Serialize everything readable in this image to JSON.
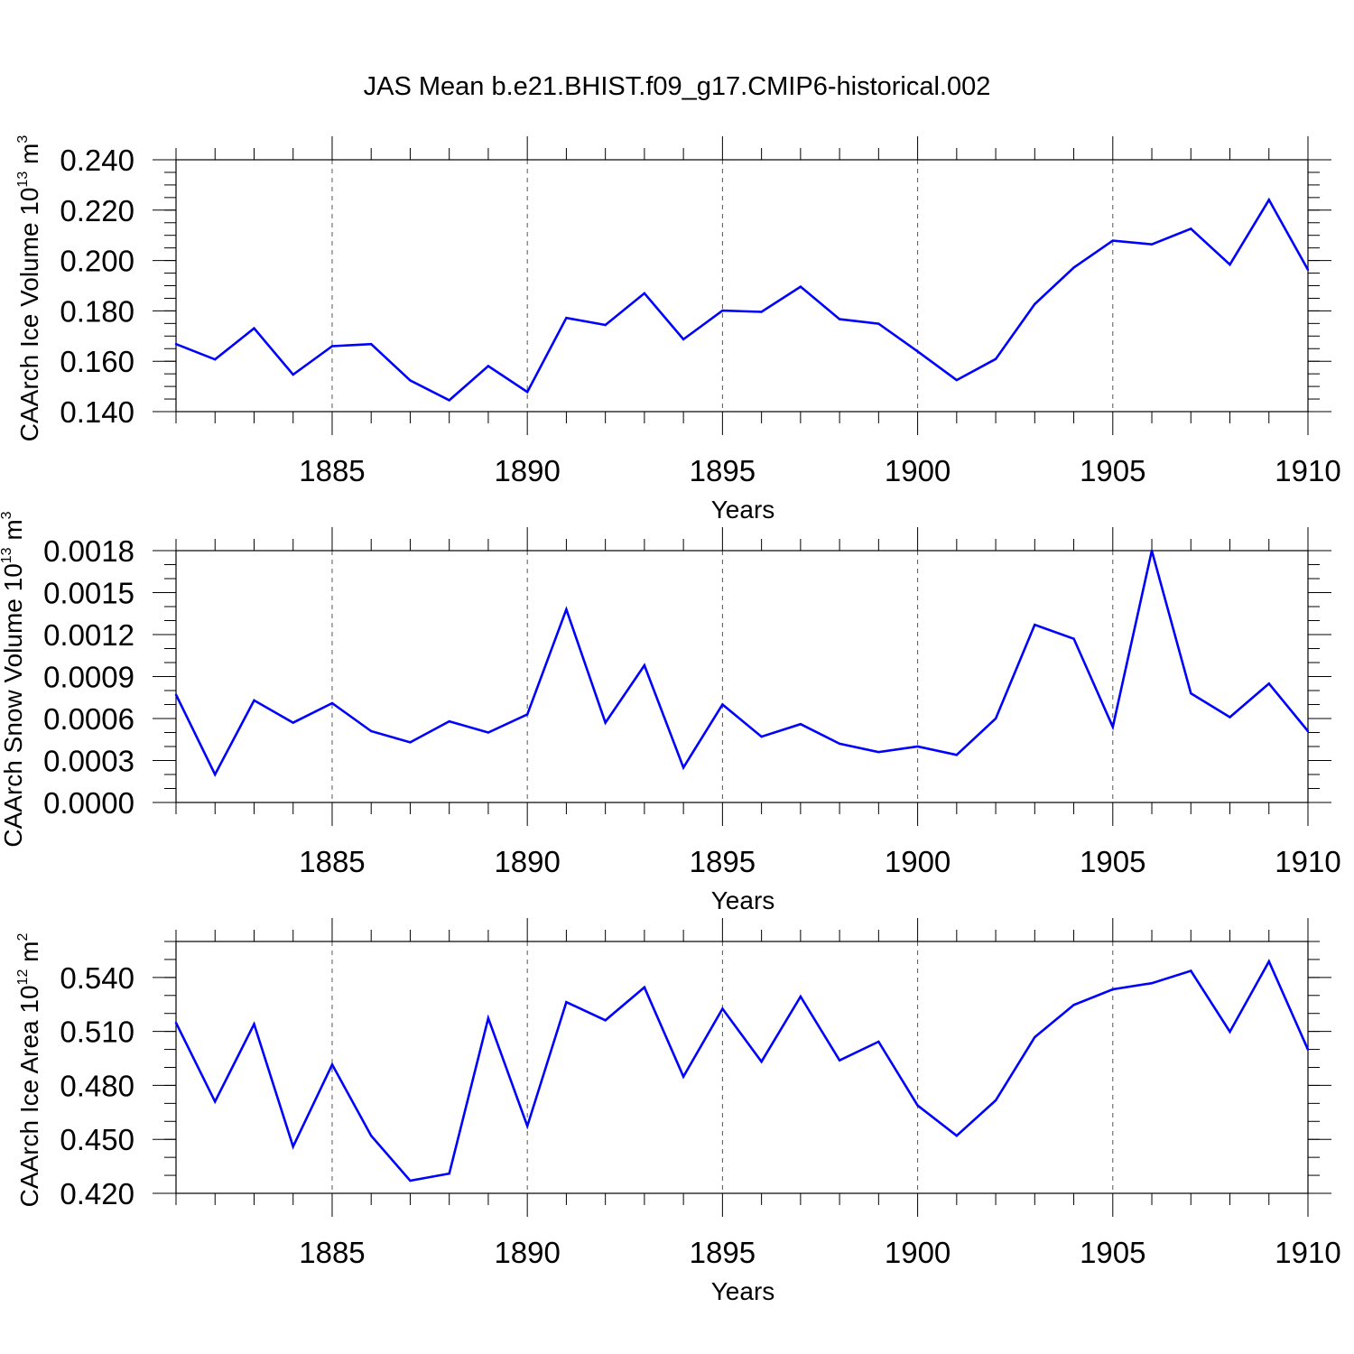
{
  "title": "JAS Mean b.e21.BHIST.f09_g17.CMIP6-historical.002",
  "line_color": "#0000ff",
  "chart_data": [
    {
      "type": "line",
      "title": "JAS Mean b.e21.BHIST.f09_g17.CMIP6-historical.002",
      "xlabel": "Years",
      "ylabel": "CAArch Ice Volume 10",
      "ylabel_exp": "13",
      "ylabel_unit": " m",
      "ylabel_unit_exp": "3",
      "xlim": [
        1881,
        1910
      ],
      "ylim": [
        0.14,
        0.24
      ],
      "yticks": [
        "0.140",
        "0.160",
        "0.180",
        "0.200",
        "0.220",
        "0.240"
      ],
      "ytick_values": [
        0.14,
        0.16,
        0.18,
        0.2,
        0.22,
        0.24
      ],
      "yminor_step": 0.005,
      "xticks": [
        "1885",
        "1890",
        "1895",
        "1900",
        "1905",
        "1910"
      ],
      "xtick_values": [
        1885,
        1890,
        1895,
        1900,
        1905,
        1910
      ],
      "grid": "x-dashed",
      "x": [
        1881,
        1882,
        1883,
        1884,
        1885,
        1886,
        1887,
        1888,
        1889,
        1890,
        1891,
        1892,
        1893,
        1894,
        1895,
        1896,
        1897,
        1898,
        1899,
        1900,
        1901,
        1902,
        1903,
        1904,
        1905,
        1906,
        1907,
        1908,
        1909,
        1910
      ],
      "series": [
        {
          "name": "CAArch Ice Volume",
          "values": [
            0.1668,
            0.1607,
            0.1731,
            0.1547,
            0.166,
            0.1668,
            0.1524,
            0.1445,
            0.1581,
            0.1478,
            0.1772,
            0.1744,
            0.187,
            0.1687,
            0.1801,
            0.1796,
            0.1896,
            0.1767,
            0.1749,
            0.1639,
            0.1525,
            0.1609,
            0.1827,
            0.1972,
            0.2079,
            0.2064,
            0.2126,
            0.1984,
            0.2241,
            0.1963
          ]
        }
      ]
    },
    {
      "type": "line",
      "xlabel": "Years",
      "ylabel": "CAArch Snow Volume 10",
      "ylabel_exp": "13",
      "ylabel_unit": " m",
      "ylabel_unit_exp": "3",
      "xlim": [
        1881,
        1910
      ],
      "ylim": [
        0.0,
        0.0018
      ],
      "yticks": [
        "0.0000",
        "0.0003",
        "0.0006",
        "0.0009",
        "0.0012",
        "0.0015",
        "0.0018"
      ],
      "ytick_values": [
        0.0,
        0.0003,
        0.0006,
        0.0009,
        0.0012,
        0.0015,
        0.0018
      ],
      "yminor_step": 0.0001,
      "xticks": [
        "1885",
        "1890",
        "1895",
        "1900",
        "1905",
        "1910"
      ],
      "xtick_values": [
        1885,
        1890,
        1895,
        1900,
        1905,
        1910
      ],
      "grid": "x-dashed",
      "x": [
        1881,
        1882,
        1883,
        1884,
        1885,
        1886,
        1887,
        1888,
        1889,
        1890,
        1891,
        1892,
        1893,
        1894,
        1895,
        1896,
        1897,
        1898,
        1899,
        1900,
        1901,
        1902,
        1903,
        1904,
        1905,
        1906,
        1907,
        1908,
        1909,
        1910
      ],
      "series": [
        {
          "name": "CAArch Snow Volume",
          "values": [
            0.00077,
            0.0002,
            0.00073,
            0.00057,
            0.00071,
            0.00051,
            0.00043,
            0.00058,
            0.0005,
            0.00063,
            0.00138,
            0.00057,
            0.00098,
            0.00025,
            0.0007,
            0.00047,
            0.00056,
            0.00042,
            0.00036,
            0.0004,
            0.00034,
            0.0006,
            0.00127,
            0.00117,
            0.00054,
            0.0018,
            0.00078,
            0.00061,
            0.00085,
            0.00051
          ]
        }
      ]
    },
    {
      "type": "line",
      "xlabel": "Years",
      "ylabel": "CAArch Ice Area 10",
      "ylabel_exp": "12",
      "ylabel_unit": " m",
      "ylabel_unit_exp": "2",
      "xlim": [
        1881,
        1910
      ],
      "ylim": [
        0.42,
        0.56
      ],
      "yticks": [
        "0.420",
        "0.450",
        "0.480",
        "0.510",
        "0.540"
      ],
      "ytick_values": [
        0.42,
        0.45,
        0.48,
        0.51,
        0.54
      ],
      "yminor_step": 0.01,
      "xticks": [
        "1885",
        "1890",
        "1895",
        "1900",
        "1905",
        "1910"
      ],
      "xtick_values": [
        1885,
        1890,
        1895,
        1900,
        1905,
        1910
      ],
      "grid": "x-dashed",
      "x": [
        1881,
        1882,
        1883,
        1884,
        1885,
        1886,
        1887,
        1888,
        1889,
        1890,
        1891,
        1892,
        1893,
        1894,
        1895,
        1896,
        1897,
        1898,
        1899,
        1900,
        1901,
        1902,
        1903,
        1904,
        1905,
        1906,
        1907,
        1908,
        1909,
        1910
      ],
      "series": [
        {
          "name": "CAArch Ice Area",
          "values": [
            0.5148,
            0.471,
            0.5141,
            0.446,
            0.4916,
            0.452,
            0.427,
            0.431,
            0.5174,
            0.4574,
            0.5263,
            0.5162,
            0.5345,
            0.4849,
            0.5226,
            0.4932,
            0.5294,
            0.4939,
            0.5043,
            0.4688,
            0.452,
            0.4717,
            0.5068,
            0.5247,
            0.5334,
            0.5368,
            0.5437,
            0.5098,
            0.5489,
            0.4999
          ]
        }
      ]
    }
  ]
}
